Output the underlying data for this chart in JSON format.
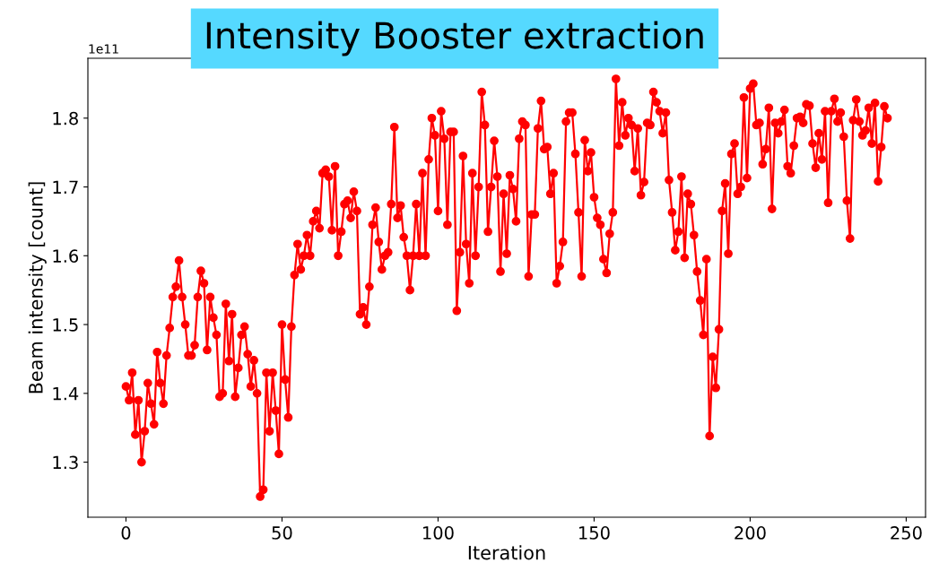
{
  "chart_data": {
    "type": "line",
    "title": "Intensity Booster extraction",
    "xlabel": "Iteration",
    "ylabel": "Beam intensity [count]",
    "annotations": [
      "1e11"
    ],
    "x": [
      0,
      1,
      2,
      3,
      4,
      5,
      6,
      7,
      8,
      9,
      10,
      11,
      12,
      13,
      14,
      15,
      16,
      17,
      18,
      19,
      20,
      21,
      22,
      23,
      24,
      25,
      26,
      27,
      28,
      29,
      30,
      31,
      32,
      33,
      34,
      35,
      36,
      37,
      38,
      39,
      40,
      41,
      42,
      43,
      44,
      45,
      46,
      47,
      48,
      49,
      50,
      51,
      52,
      53,
      54,
      55,
      56,
      57,
      58,
      59,
      60,
      61,
      62,
      63,
      64,
      65,
      66,
      67,
      68,
      69,
      70,
      71,
      72,
      73,
      74,
      75,
      76,
      77,
      78,
      79,
      80,
      81,
      82,
      83,
      84,
      85,
      86,
      87,
      88,
      89,
      90,
      91,
      92,
      93,
      94,
      95,
      96,
      97,
      98,
      99,
      100,
      101,
      102,
      103,
      104,
      105,
      106,
      107,
      108,
      109,
      110,
      111,
      112,
      113,
      114,
      115,
      116,
      117,
      118,
      119,
      120,
      121,
      122,
      123,
      124,
      125,
      126,
      127,
      128,
      129,
      130,
      131,
      132,
      133,
      134,
      135,
      136,
      137,
      138,
      139,
      140,
      141,
      142,
      143,
      144,
      145,
      146,
      147,
      148,
      149,
      150,
      151,
      152,
      153,
      154,
      155,
      156,
      157,
      158,
      159,
      160,
      161,
      162,
      163,
      164,
      165,
      166,
      167,
      168,
      169,
      170,
      171,
      172,
      173,
      174,
      175,
      176,
      177,
      178,
      179,
      180,
      181,
      182,
      183,
      184,
      185,
      186,
      187,
      188,
      189,
      190,
      191,
      192,
      193,
      194,
      195,
      196,
      197,
      198,
      199,
      200,
      201,
      202,
      203,
      204,
      205,
      206,
      207,
      208,
      209,
      210,
      211,
      212,
      213,
      214,
      215,
      216,
      217,
      218,
      219,
      220,
      221,
      222,
      223,
      224,
      225,
      226,
      227,
      228,
      229,
      230,
      231,
      232,
      233,
      234,
      235,
      236,
      237,
      238,
      239,
      240,
      241,
      242,
      243,
      244
    ],
    "series": [
      {
        "color": "#ff0000",
        "values": [
          1.41,
          1.39,
          1.43,
          1.34,
          1.39,
          1.3,
          1.345,
          1.415,
          1.385,
          1.355,
          1.46,
          1.415,
          1.385,
          1.455,
          1.495,
          1.54,
          1.555,
          1.593,
          1.54,
          1.5,
          1.455,
          1.455,
          1.47,
          1.54,
          1.578,
          1.56,
          1.463,
          1.54,
          1.51,
          1.485,
          1.395,
          1.4,
          1.53,
          1.447,
          1.515,
          1.395,
          1.437,
          1.485,
          1.497,
          1.457,
          1.41,
          1.448,
          1.4,
          1.25,
          1.26,
          1.43,
          1.345,
          1.43,
          1.375,
          1.312,
          1.5,
          1.42,
          1.365,
          1.497,
          1.572,
          1.617,
          1.58,
          1.6,
          1.63,
          1.6,
          1.65,
          1.665,
          1.64,
          1.72,
          1.725,
          1.715,
          1.637,
          1.73,
          1.6,
          1.635,
          1.675,
          1.68,
          1.655,
          1.693,
          1.665,
          1.515,
          1.525,
          1.5,
          1.555,
          1.645,
          1.67,
          1.62,
          1.58,
          1.6,
          1.605,
          1.675,
          1.787,
          1.655,
          1.673,
          1.627,
          1.6,
          1.55,
          1.6,
          1.675,
          1.6,
          1.72,
          1.6,
          1.74,
          1.8,
          1.775,
          1.665,
          1.81,
          1.77,
          1.645,
          1.78,
          1.78,
          1.52,
          1.605,
          1.745,
          1.617,
          1.56,
          1.72,
          1.6,
          1.7,
          1.838,
          1.79,
          1.635,
          1.7,
          1.767,
          1.715,
          1.577,
          1.69,
          1.603,
          1.717,
          1.697,
          1.65,
          1.77,
          1.795,
          1.79,
          1.57,
          1.66,
          1.66,
          1.785,
          1.825,
          1.755,
          1.758,
          1.69,
          1.72,
          1.56,
          1.585,
          1.62,
          1.795,
          1.808,
          1.808,
          1.748,
          1.663,
          1.57,
          1.768,
          1.723,
          1.75,
          1.685,
          1.655,
          1.645,
          1.595,
          1.575,
          1.632,
          1.663,
          1.857,
          1.76,
          1.823,
          1.775,
          1.8,
          1.79,
          1.723,
          1.785,
          1.688,
          1.707,
          1.793,
          1.79,
          1.838,
          1.823,
          1.81,
          1.778,
          1.808,
          1.71,
          1.663,
          1.608,
          1.635,
          1.715,
          1.597,
          1.69,
          1.675,
          1.63,
          1.577,
          1.535,
          1.485,
          1.595,
          1.338,
          1.453,
          1.408,
          1.493,
          1.665,
          1.705,
          1.603,
          1.748,
          1.763,
          1.69,
          1.7,
          1.83,
          1.713,
          1.843,
          1.85,
          1.79,
          1.793,
          1.733,
          1.755,
          1.815,
          1.668,
          1.793,
          1.778,
          1.795,
          1.812,
          1.73,
          1.72,
          1.76,
          1.8,
          1.802,
          1.793,
          1.82,
          1.818,
          1.763,
          1.728,
          1.778,
          1.74,
          1.81,
          1.677,
          1.81,
          1.828,
          1.795,
          1.808,
          1.773,
          1.68,
          1.625,
          1.797,
          1.827,
          1.795,
          1.775,
          1.782,
          1.815,
          1.763,
          1.822,
          1.708,
          1.758,
          1.817,
          1.8
        ]
      }
    ],
    "xlim": [
      -12.2,
      256.2
    ],
    "xticks": [
      0,
      50,
      100,
      150,
      200,
      250
    ],
    "ylim": [
      1.22,
      1.887
    ],
    "yticks": [
      1.3,
      1.4,
      1.5,
      1.6,
      1.7,
      1.8
    ],
    "marker": "circle",
    "line_style": "solid",
    "grid": false,
    "legend": false
  }
}
